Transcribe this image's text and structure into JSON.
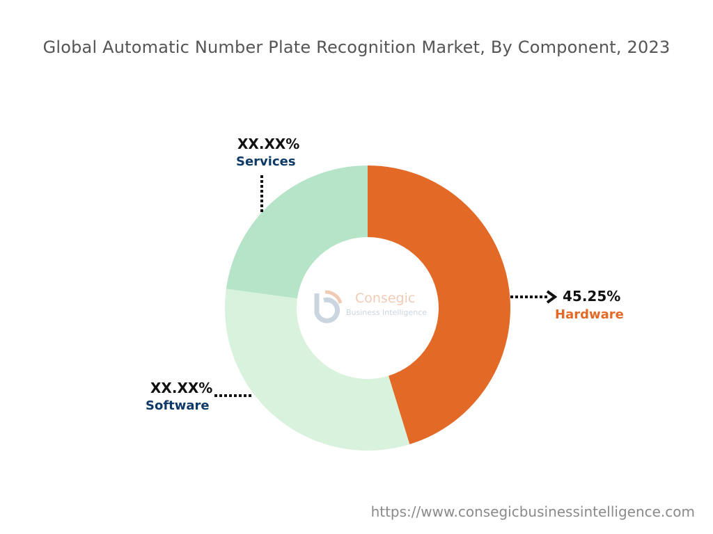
{
  "chart_data": {
    "type": "pie",
    "donut": true,
    "title": "Global Automatic Number Plate Recognition Market, By Component, 2023",
    "categories": [
      "Hardware",
      "Software",
      "Services"
    ],
    "values": [
      45.25,
      31.9,
      22.85
    ],
    "data_labels": [
      "45.25%",
      "XX.XX%",
      "XX.XX%"
    ],
    "colors": [
      "#e36a26",
      "#d9f2de",
      "#b5e4c8"
    ],
    "label_colors": [
      "#e36a26",
      "#0d3a66",
      "#0d3a66"
    ]
  },
  "watermark": {
    "brand": "Consegic",
    "tagline": "Business Intelligence"
  },
  "source_url": "https://www.consegicbusinessintelligence.com"
}
